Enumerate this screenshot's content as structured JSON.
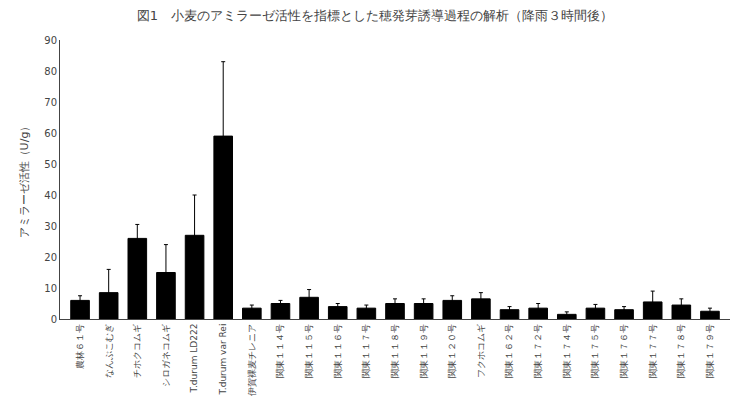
{
  "chart_data": {
    "type": "bar",
    "title": "図1　小麦のアミラーゼ活性を指標とした穂発芽誘導過程の解析（降雨３時間後）",
    "ylabel": "アミラーゼ活性（U/g）",
    "categories": [
      "農林６１号",
      "なんぶこむぎ",
      "チホクコムギ",
      "シロガネコムギ",
      "T.durum LD222",
      "T.durum var Rei",
      "伊賀裸麦チレニア",
      "関東１１４号",
      "関東１１５号",
      "関東１１６号",
      "関東１１７号",
      "関東１１８号",
      "関東１１９号",
      "関東１２０号",
      "フクホコムギ",
      "関東１６２号",
      "関東１７２号",
      "関東１７４号",
      "関東１７５号",
      "関東１７６号",
      "関東１７７号",
      "関東１７８号",
      "関東１７９号"
    ],
    "values": [
      6.0,
      8.5,
      26.0,
      15.0,
      27.0,
      59.0,
      3.5,
      5.0,
      7.0,
      4.0,
      3.5,
      5.0,
      5.0,
      6.0,
      6.5,
      3.0,
      3.5,
      1.5,
      3.5,
      3.0,
      5.5,
      4.5,
      2.5
    ],
    "errors": [
      1.5,
      7.5,
      4.5,
      9.0,
      13.0,
      24.0,
      1.0,
      1.0,
      2.5,
      1.0,
      1.0,
      1.5,
      1.5,
      1.5,
      2.0,
      1.0,
      1.5,
      0.8,
      1.2,
      1.0,
      3.5,
      2.0,
      1.0
    ],
    "color": "#000000",
    "ylim": [
      0,
      90
    ],
    "yticks": [
      0,
      10,
      20,
      30,
      40,
      50,
      60,
      70,
      80,
      90
    ],
    "grid": false
  }
}
